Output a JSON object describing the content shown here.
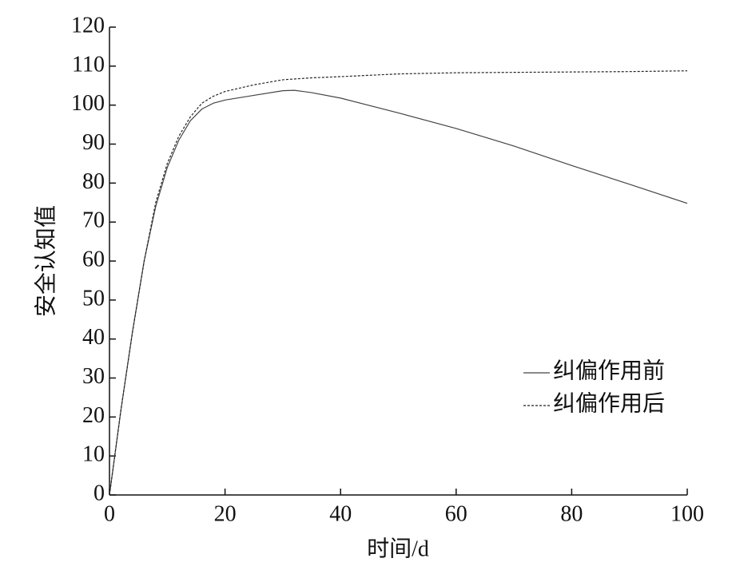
{
  "chart_data": {
    "type": "line",
    "x_label": "时间/d",
    "y_label": "安全认知值",
    "series": [
      {
        "name": "纠偏作用前",
        "color": "#444444",
        "dash": "solid",
        "x": [
          0,
          2,
          4,
          6,
          8,
          10,
          12,
          14,
          16,
          18,
          20,
          25,
          30,
          32,
          35,
          40,
          50,
          60,
          70,
          80,
          90,
          100
        ],
        "values": [
          0,
          22,
          42,
          60,
          74,
          84,
          91,
          96,
          99,
          100.5,
          101.3,
          102.5,
          103.7,
          103.8,
          103.2,
          101.8,
          98,
          94,
          89.5,
          84.5,
          79.7,
          74.8
        ]
      },
      {
        "name": "纠偏作用后",
        "color": "#222222",
        "dash": "dashed",
        "x": [
          0,
          2,
          4,
          6,
          8,
          10,
          12,
          14,
          16,
          18,
          20,
          25,
          30,
          35,
          40,
          50,
          60,
          70,
          80,
          90,
          100
        ],
        "values": [
          0,
          22,
          42,
          60,
          75,
          85,
          92,
          97,
          100.5,
          102.3,
          103.5,
          105.2,
          106.5,
          107,
          107.3,
          108,
          108.3,
          108.4,
          108.5,
          108.6,
          108.8
        ]
      }
    ],
    "xlim": [
      0,
      100
    ],
    "xticks": [
      0,
      20,
      40,
      60,
      80,
      100
    ],
    "ylim": [
      0,
      120
    ],
    "yticks": [
      0,
      10,
      20,
      30,
      40,
      50,
      60,
      70,
      80,
      90,
      100,
      110,
      120
    ],
    "grid": false,
    "legend": "right"
  }
}
